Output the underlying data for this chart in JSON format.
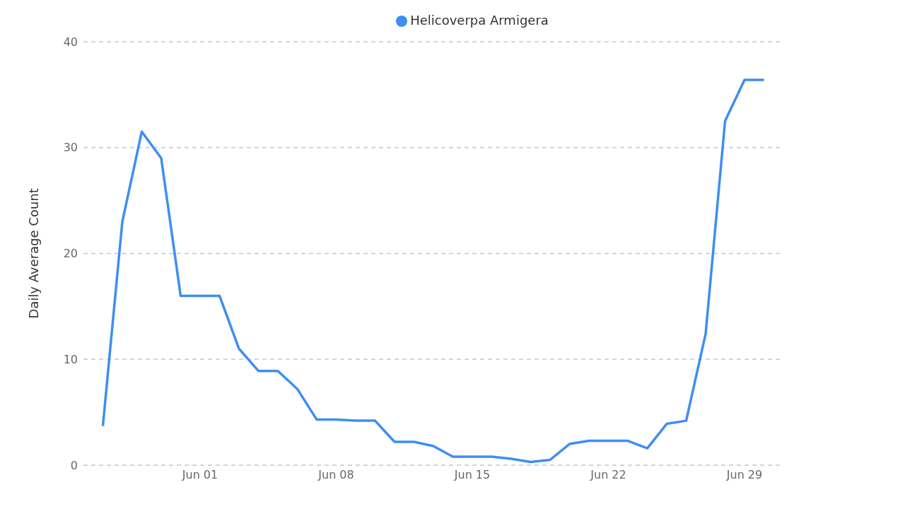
{
  "chart_data": {
    "type": "line",
    "ylabel": "Daily Average Count",
    "x": [
      "--05-27",
      "--05-28",
      "--05-29",
      "--05-30",
      "--05-31",
      "--06-01",
      "--06-02",
      "--06-03",
      "--06-04",
      "--06-05",
      "--06-06",
      "--06-07",
      "--06-08",
      "--06-09",
      "--06-10",
      "--06-11",
      "--06-12",
      "--06-13",
      "--06-14",
      "--06-15",
      "--06-16",
      "--06-17",
      "--06-18",
      "--06-19",
      "--06-20",
      "--06-21",
      "--06-22",
      "--06-23",
      "--06-24",
      "--06-25",
      "--06-26",
      "--06-27",
      "--06-28",
      "--06-29",
      "--06-30"
    ],
    "series": [
      {
        "name": "Helicoverpa Armigera",
        "color": "#3f8ef0",
        "values": [
          3.7,
          23.0,
          31.5,
          29.0,
          16.0,
          16.0,
          16.0,
          11.0,
          8.9,
          8.9,
          7.2,
          4.3,
          4.3,
          4.2,
          4.2,
          2.2,
          2.2,
          1.8,
          0.8,
          0.8,
          0.8,
          0.6,
          0.3,
          0.5,
          2.0,
          2.3,
          2.3,
          2.3,
          1.6,
          3.9,
          4.2,
          12.4,
          32.5,
          36.4,
          36.4
        ]
      }
    ],
    "xlim": [
      "--05-26",
      "--07-01"
    ],
    "xticks": [
      {
        "value": "--06-01",
        "label": "Jun 01"
      },
      {
        "value": "--06-08",
        "label": "Jun 08"
      },
      {
        "value": "--06-15",
        "label": "Jun 15"
      },
      {
        "value": "--06-22",
        "label": "Jun 22"
      },
      {
        "value": "--06-29",
        "label": "Jun 29"
      }
    ],
    "ylim": [
      0,
      40
    ],
    "yticks": [
      0,
      10,
      20,
      30,
      40
    ],
    "grid": "y",
    "legend": "top",
    "marker": "none",
    "line_style": "solid"
  }
}
